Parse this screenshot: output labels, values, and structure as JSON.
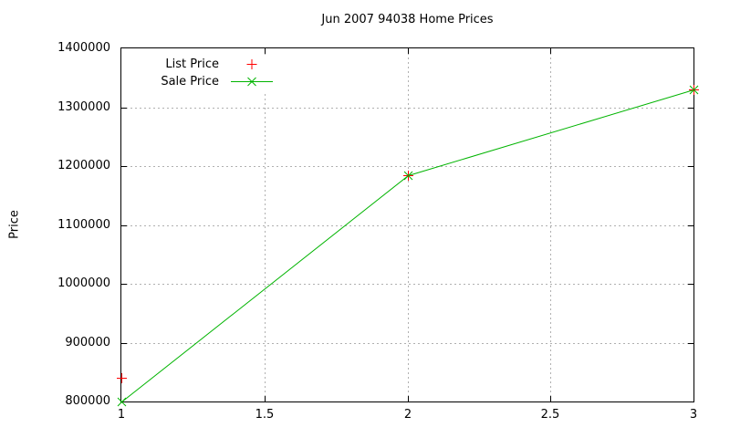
{
  "chart_data": {
    "type": "line",
    "title": "Jun 2007 94038 Home Prices",
    "xlabel": "",
    "ylabel": "Price",
    "xlim": [
      1,
      3
    ],
    "ylim": [
      800000,
      1400000
    ],
    "grid": true,
    "legend_position": "top-left",
    "x_ticks": [
      {
        "label": "1",
        "value": 1
      },
      {
        "label": "1.5",
        "value": 1.5
      },
      {
        "label": "2",
        "value": 2
      },
      {
        "label": "2.5",
        "value": 2.5
      },
      {
        "label": "3",
        "value": 3
      }
    ],
    "y_ticks": [
      {
        "label": "800000",
        "value": 800000
      },
      {
        "label": "900000",
        "value": 900000
      },
      {
        "label": "1000000",
        "value": 1000000
      },
      {
        "label": "1100000",
        "value": 1100000
      },
      {
        "label": "1200000",
        "value": 1200000
      },
      {
        "label": "1300000",
        "value": 1300000
      },
      {
        "label": "1400000",
        "value": 1400000
      }
    ],
    "series": [
      {
        "name": "List Price",
        "color": "#ff0000",
        "marker": "plus",
        "line": false,
        "points": [
          {
            "x": 1,
            "y": 840000
          },
          {
            "x": 2,
            "y": 1185000
          },
          {
            "x": 3,
            "y": 1330000
          }
        ]
      },
      {
        "name": "Sale Price",
        "color": "#00b400",
        "marker": "x",
        "line": true,
        "points": [
          {
            "x": 1,
            "y": 800000
          },
          {
            "x": 2,
            "y": 1185000
          },
          {
            "x": 3,
            "y": 1330000
          }
        ]
      }
    ],
    "colors": {
      "grid": "#b0b0b0",
      "axis": "#000000",
      "text": "#000000",
      "background": "#ffffff"
    }
  }
}
